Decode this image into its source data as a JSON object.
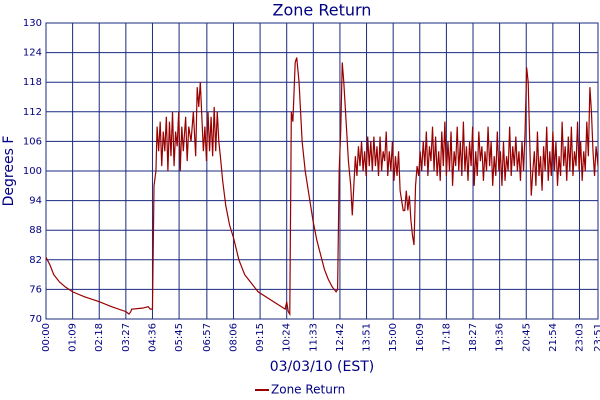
{
  "chart_data": {
    "type": "line",
    "title": "Zone Return",
    "y_label": "Degrees F",
    "x_label": "03/03/10 (EST)",
    "xlim": [
      0,
      1431
    ],
    "ylim": [
      70,
      130
    ],
    "yticks": [
      70,
      76,
      82,
      88,
      94,
      100,
      106,
      112,
      118,
      124,
      130
    ],
    "xticks": [
      {
        "value": 0,
        "label": "00:00"
      },
      {
        "value": 69,
        "label": "01:09"
      },
      {
        "value": 138,
        "label": "02:18"
      },
      {
        "value": 207,
        "label": "03:27"
      },
      {
        "value": 276,
        "label": "04:36"
      },
      {
        "value": 345,
        "label": "05:45"
      },
      {
        "value": 417,
        "label": "06:57"
      },
      {
        "value": 486,
        "label": "08:06"
      },
      {
        "value": 555,
        "label": "09:15"
      },
      {
        "value": 624,
        "label": "10:24"
      },
      {
        "value": 693,
        "label": "11:33"
      },
      {
        "value": 762,
        "label": "12:42"
      },
      {
        "value": 831,
        "label": "13:51"
      },
      {
        "value": 900,
        "label": "15:00"
      },
      {
        "value": 969,
        "label": "16:09"
      },
      {
        "value": 1038,
        "label": "17:18"
      },
      {
        "value": 1107,
        "label": "18:27"
      },
      {
        "value": 1176,
        "label": "19:36"
      },
      {
        "value": 1245,
        "label": "20:45"
      },
      {
        "value": 1314,
        "label": "21:54"
      },
      {
        "value": 1383,
        "label": "23:03"
      },
      {
        "value": 1431,
        "label": "23:51"
      }
    ],
    "grid": true,
    "legend": "bottom",
    "x": [
      0,
      10,
      20,
      35,
      50,
      69,
      100,
      138,
      170,
      207,
      215,
      220,
      222,
      250,
      265,
      270,
      276,
      280,
      285,
      288,
      292,
      296,
      300,
      304,
      308,
      312,
      316,
      320,
      324,
      328,
      332,
      336,
      340,
      344,
      348,
      352,
      356,
      362,
      366,
      370,
      376,
      382,
      388,
      392,
      396,
      400,
      404,
      408,
      412,
      416,
      420,
      424,
      428,
      432,
      436,
      440,
      444,
      448,
      452,
      458,
      466,
      476,
      486,
      500,
      515,
      530,
      550,
      570,
      590,
      610,
      620,
      624,
      628,
      632,
      636,
      640,
      646,
      650,
      656,
      664,
      672,
      682,
      692,
      702,
      712,
      722,
      732,
      742,
      752,
      756,
      760,
      764,
      768,
      772,
      778,
      784,
      790,
      794,
      798,
      802,
      806,
      810,
      814,
      818,
      822,
      826,
      830,
      834,
      838,
      842,
      846,
      850,
      854,
      858,
      862,
      866,
      870,
      874,
      878,
      882,
      886,
      890,
      894,
      898,
      902,
      906,
      910,
      914,
      918,
      922,
      926,
      930,
      934,
      938,
      942,
      946,
      950,
      954,
      958,
      962,
      966,
      970,
      974,
      978,
      982,
      986,
      990,
      994,
      998,
      1002,
      1006,
      1010,
      1014,
      1018,
      1022,
      1026,
      1030,
      1034,
      1038,
      1042,
      1046,
      1050,
      1054,
      1058,
      1062,
      1066,
      1070,
      1074,
      1078,
      1082,
      1086,
      1090,
      1094,
      1098,
      1102,
      1106,
      1110,
      1114,
      1118,
      1122,
      1126,
      1130,
      1134,
      1138,
      1142,
      1146,
      1150,
      1154,
      1158,
      1162,
      1166,
      1170,
      1174,
      1178,
      1182,
      1186,
      1190,
      1194,
      1198,
      1202,
      1206,
      1210,
      1214,
      1218,
      1222,
      1226,
      1230,
      1234,
      1238,
      1242,
      1246,
      1250,
      1254,
      1258,
      1262,
      1266,
      1270,
      1274,
      1278,
      1282,
      1286,
      1290,
      1294,
      1298,
      1302,
      1306,
      1310,
      1314,
      1318,
      1322,
      1326,
      1330,
      1334,
      1338,
      1342,
      1346,
      1350,
      1354,
      1358,
      1362,
      1366,
      1370,
      1374,
      1378,
      1382,
      1386,
      1390,
      1394,
      1398,
      1402,
      1406,
      1410,
      1414,
      1418,
      1422,
      1426,
      1431
    ],
    "series": [
      {
        "name": "Zone Return",
        "color": "#990000",
        "values": [
          82.5,
          81,
          79,
          77.5,
          76.5,
          75.5,
          74.5,
          73.5,
          72.5,
          71.5,
          71,
          71.5,
          72,
          72.2,
          72.5,
          72,
          72,
          97,
          100,
          109,
          104,
          110,
          101,
          108,
          104,
          111,
          100,
          110,
          103,
          112,
          101,
          108,
          105,
          112,
          100,
          109,
          104,
          111,
          102,
          109,
          106,
          112,
          103,
          117,
          113,
          118,
          111,
          104,
          109,
          102,
          112,
          104,
          111,
          103,
          113,
          104,
          112,
          106,
          103,
          98,
          93,
          89,
          86.5,
          82,
          79,
          77.5,
          75.5,
          74.5,
          73.5,
          72.5,
          72,
          73.5,
          71.5,
          71,
          112,
          110,
          122,
          123,
          118,
          106,
          100,
          95,
          90,
          86,
          83,
          80,
          78,
          76.5,
          75.5,
          76,
          100,
          108,
          122,
          118,
          110,
          102,
          97,
          91,
          97,
          103,
          99,
          105,
          101,
          106,
          100,
          104,
          99,
          107,
          101,
          106,
          100,
          107,
          101,
          105,
          99,
          107,
          100,
          104,
          102,
          108,
          99,
          104,
          100,
          106,
          98,
          103,
          99,
          104,
          96,
          94,
          92,
          92,
          96,
          92,
          95,
          90,
          87,
          85,
          97,
          101,
          99,
          104,
          100,
          106,
          101,
          108,
          99,
          105,
          102,
          109,
          100,
          107,
          99,
          104,
          98,
          108,
          101,
          110,
          99,
          106,
          100,
          108,
          97,
          104,
          101,
          109,
          100,
          106,
          99,
          110,
          100,
          105,
          98,
          106,
          101,
          109,
          97,
          104,
          99,
          108,
          102,
          105,
          98,
          104,
          100,
          109,
          101,
          106,
          97,
          103,
          99,
          108,
          100,
          104,
          97,
          106,
          98,
          103,
          100,
          109,
          99,
          105,
          101,
          107,
          100,
          104,
          98,
          106,
          100,
          108,
          121,
          118,
          106,
          95,
          100,
          104,
          97,
          108,
          99,
          103,
          96,
          105,
          100,
          109,
          98,
          104,
          99,
          108,
          100,
          106,
          97,
          103,
          99,
          110,
          101,
          105,
          98,
          107,
          100,
          109,
          99,
          104,
          101,
          110,
          100,
          106,
          98,
          104,
          100,
          110,
          103,
          117,
          112,
          104,
          99,
          105,
          101
        ]
      }
    ]
  }
}
